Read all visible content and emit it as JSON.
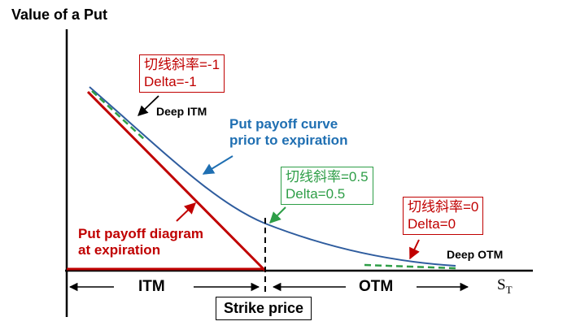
{
  "title": "Value of a Put",
  "x_axis_label": "S",
  "x_axis_subscript": "T",
  "strike_label": "Strike price",
  "regions": {
    "itm": "ITM",
    "otm": "OTM"
  },
  "annotations": {
    "deep_itm": "Deep ITM",
    "deep_otm": "Deep OTM",
    "curve_label_line1": "Put payoff curve",
    "curve_label_line2": "prior to expiration",
    "expiry_label_line1": "Put payoff diagram",
    "expiry_label_line2": "at expiration"
  },
  "slope_boxes": [
    {
      "id": "deep-itm",
      "line1": "切线斜率=-1",
      "line2": "Delta=-1"
    },
    {
      "id": "atm",
      "line1": "切线斜率=0.5",
      "line2": "Delta=0.5"
    },
    {
      "id": "deep-otm",
      "line1": "切线斜率=0",
      "line2": "Delta=0"
    }
  ],
  "colors": {
    "expiry_payoff": "#c00000",
    "pre_expiry_curve": "#2e5c9e",
    "tangent": "#2e9e47",
    "curve_label": "#1f6fb2",
    "axis": "#000000"
  }
}
